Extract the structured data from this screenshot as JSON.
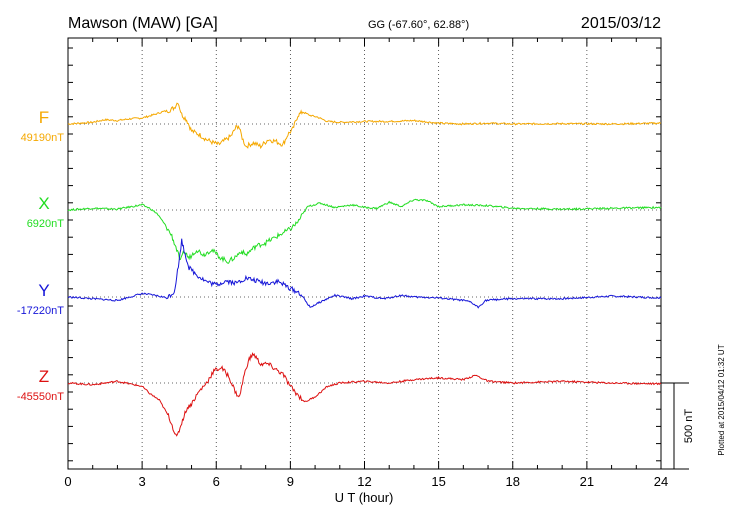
{
  "header": {
    "station": "Mawson (MAW)  [GA]",
    "coords": "GG (-67.60°,  62.88°)",
    "date": "2015/03/12"
  },
  "footer": {
    "plotted_at": "Plotted at 2015/04/12 01:32 UT",
    "scale_label": "500 nT"
  },
  "chart_data": {
    "type": "line",
    "xlabel": "U T (hour)",
    "xlim": [
      0,
      24
    ],
    "xticks": [
      "0",
      "3",
      "6",
      "9",
      "12",
      "15",
      "18",
      "21",
      "24"
    ],
    "y_units": "nT, each component offset to its baseline",
    "scale_bar_nT": 500,
    "grid": true,
    "series": [
      {
        "name": "F",
        "baseline_label": "49190nT",
        "color": "#f5a800",
        "x": [
          0,
          1,
          1.5,
          2,
          2.5,
          3,
          3.5,
          3.8,
          4.1,
          4.3,
          4.45,
          4.6,
          4.8,
          5.0,
          5.3,
          5.6,
          5.9,
          6.1,
          6.3,
          6.6,
          6.8,
          6.9,
          7.05,
          7.2,
          7.5,
          7.8,
          8.1,
          8.4,
          8.7,
          8.9,
          9.1,
          9.3,
          9.5,
          9.8,
          10.1,
          10.5,
          11,
          12,
          13,
          14,
          15,
          16,
          17,
          18,
          20,
          22,
          24
        ],
        "values": [
          0,
          10,
          25,
          20,
          30,
          35,
          55,
          70,
          80,
          95,
          130,
          55,
          25,
          -40,
          -60,
          -90,
          -110,
          -120,
          -100,
          -70,
          -20,
          -10,
          -80,
          -130,
          -110,
          -130,
          -90,
          -100,
          -120,
          -60,
          -30,
          50,
          70,
          50,
          40,
          15,
          10,
          15,
          15,
          20,
          5,
          0,
          5,
          0,
          2,
          0,
          5
        ]
      },
      {
        "name": "X",
        "baseline_label": "6920nT",
        "color": "#22dd22",
        "x": [
          0,
          1,
          2,
          3,
          3.3,
          3.6,
          3.9,
          4.2,
          4.4,
          4.55,
          4.7,
          4.9,
          5.2,
          5.5,
          5.8,
          6.2,
          6.5,
          6.8,
          7.0,
          7.2,
          7.6,
          8.0,
          8.5,
          9.0,
          9.3,
          9.7,
          10.2,
          10.8,
          11.5,
          12,
          12.5,
          13,
          13.5,
          14,
          14.5,
          15,
          16,
          17,
          18,
          20,
          22,
          24
        ],
        "values": [
          0,
          10,
          5,
          30,
          10,
          -20,
          -80,
          -150,
          -230,
          -300,
          -240,
          -280,
          -230,
          -260,
          -230,
          -280,
          -300,
          -270,
          -240,
          -260,
          -210,
          -190,
          -150,
          -110,
          -70,
          20,
          40,
          15,
          30,
          15,
          10,
          45,
          20,
          60,
          55,
          20,
          30,
          25,
          10,
          5,
          10,
          15
        ]
      },
      {
        "name": "Y",
        "baseline_label": "-17220nT",
        "color": "#1616d8",
        "x": [
          0,
          1,
          2,
          3,
          3.5,
          4.0,
          4.3,
          4.5,
          4.6,
          4.7,
          4.9,
          5.2,
          5.6,
          6.0,
          6.4,
          6.8,
          7.2,
          7.6,
          8.0,
          8.5,
          9.0,
          9.4,
          9.8,
          10.2,
          10.8,
          11.5,
          12,
          12.8,
          13.5,
          14,
          15,
          16,
          16.3,
          16.6,
          16.9,
          17.3,
          18,
          20,
          22,
          24
        ],
        "values": [
          0,
          -10,
          -20,
          20,
          10,
          -5,
          30,
          210,
          330,
          270,
          170,
          130,
          90,
          70,
          95,
          80,
          110,
          95,
          80,
          90,
          50,
          20,
          -60,
          -30,
          10,
          -10,
          5,
          -10,
          10,
          0,
          -5,
          -20,
          -30,
          -60,
          -20,
          -15,
          -10,
          -10,
          5,
          -5
        ]
      },
      {
        "name": "Z",
        "baseline_label": "-45550nT",
        "color": "#dd1111",
        "x": [
          0,
          1,
          2,
          3,
          3.3,
          3.7,
          4.1,
          4.4,
          4.6,
          4.8,
          5.0,
          5.3,
          5.6,
          5.9,
          6.2,
          6.5,
          6.8,
          6.95,
          7.1,
          7.3,
          7.5,
          7.8,
          8.1,
          8.4,
          8.7,
          9.0,
          9.3,
          9.6,
          10.0,
          10.5,
          11,
          12,
          13,
          14,
          15,
          16,
          16.5,
          17,
          18,
          20,
          22,
          24
        ],
        "values": [
          0,
          -10,
          10,
          -20,
          -60,
          -100,
          -200,
          -320,
          -230,
          -150,
          -120,
          -50,
          0,
          70,
          90,
          40,
          -60,
          -80,
          30,
          130,
          170,
          110,
          110,
          80,
          50,
          -20,
          -70,
          -110,
          -80,
          -20,
          0,
          10,
          0,
          20,
          30,
          20,
          45,
          10,
          0,
          10,
          0,
          -5
        ]
      }
    ]
  }
}
